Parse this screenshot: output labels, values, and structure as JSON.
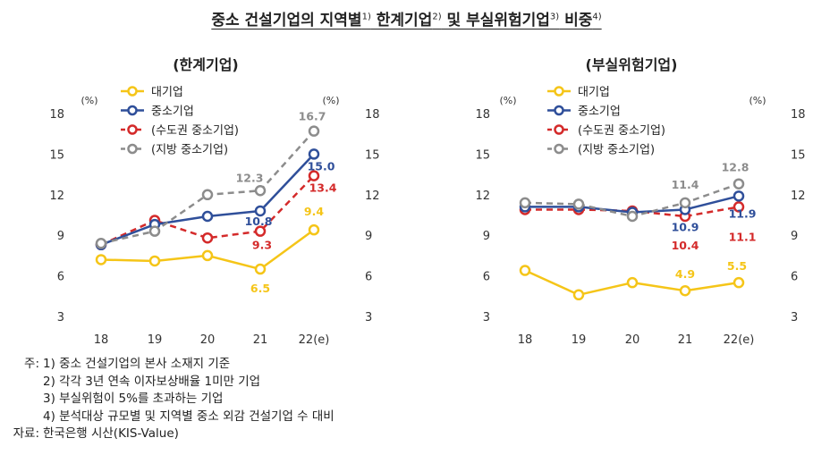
{
  "title": {
    "parts": [
      {
        "text": "중소 건설기업의 지역별",
        "sup": "1)"
      },
      {
        "text": " 한계기업",
        "sup": "2)"
      },
      {
        "text": " 및 부실위험기업",
        "sup": "3)"
      },
      {
        "text": " 비중",
        "sup": "4)"
      }
    ]
  },
  "chart_data": [
    {
      "type": "line",
      "title": "(한계기업)",
      "categories": [
        "18",
        "19",
        "20",
        "21",
        "22(e)"
      ],
      "y_unit_left": "(%)",
      "y_unit_right": "(%)",
      "ylim": [
        3,
        18
      ],
      "yticks": [
        3,
        6,
        9,
        12,
        15,
        18
      ],
      "legend_position": "top-left",
      "grid": false,
      "series": [
        {
          "name": "대기업",
          "color": "#F5C518",
          "dash": false,
          "values": [
            7.2,
            7.1,
            7.5,
            6.5,
            9.4
          ],
          "labels": {
            "3": "6.5",
            "4": "9.4"
          }
        },
        {
          "name": "중소기업",
          "color": "#2F4F9A",
          "dash": false,
          "values": [
            8.3,
            9.8,
            10.4,
            10.8,
            15.0
          ],
          "labels": {
            "3": "10.8",
            "4": "15.0"
          }
        },
        {
          "name": "(수도권 중소기업)",
          "color": "#D42A2A",
          "dash": true,
          "values": [
            8.3,
            10.1,
            8.8,
            9.3,
            13.4
          ],
          "labels": {
            "3": "9.3",
            "4": "13.4"
          }
        },
        {
          "name": "(지방 중소기업)",
          "color": "#8C8C8C",
          "dash": true,
          "values": [
            8.4,
            9.3,
            12.0,
            12.3,
            16.7
          ],
          "labels": {
            "3": "12.3",
            "4": "16.7"
          }
        }
      ]
    },
    {
      "type": "line",
      "title": "(부실위험기업)",
      "categories": [
        "18",
        "19",
        "20",
        "21",
        "22(e)"
      ],
      "y_unit_left": "(%)",
      "y_unit_right": "(%)",
      "ylim": [
        3,
        18
      ],
      "yticks": [
        3,
        6,
        9,
        12,
        15,
        18
      ],
      "legend_position": "top-left",
      "grid": false,
      "series": [
        {
          "name": "대기업",
          "color": "#F5C518",
          "dash": false,
          "values": [
            6.4,
            4.6,
            5.5,
            4.9,
            5.5
          ],
          "labels": {
            "3": "4.9",
            "4": "5.5"
          }
        },
        {
          "name": "중소기업",
          "color": "#2F4F9A",
          "dash": false,
          "values": [
            11.1,
            11.1,
            10.7,
            10.9,
            11.9
          ],
          "labels": {
            "3": "10.9",
            "4": "11.9"
          }
        },
        {
          "name": "(수도권 중소기업)",
          "color": "#D42A2A",
          "dash": true,
          "values": [
            10.9,
            10.9,
            10.8,
            10.4,
            11.1
          ],
          "labels": {
            "3": "10.4",
            "4": "11.1"
          }
        },
        {
          "name": "(지방 중소기업)",
          "color": "#8C8C8C",
          "dash": true,
          "values": [
            11.4,
            11.3,
            10.4,
            11.4,
            12.8
          ],
          "labels": {
            "3": "11.4",
            "4": "12.8"
          }
        }
      ]
    }
  ],
  "notes": [
    {
      "label": "주:",
      "text": "1) 중소 건설기업의 본사 소재지 기준"
    },
    {
      "label": "",
      "text": "2) 각각 3년 연속 이자보상배율 1미만 기업"
    },
    {
      "label": "",
      "text": "3) 부실위험이 5%를 초과하는 기업"
    },
    {
      "label": "",
      "text": "4) 분석대상 규모별 및 지역별 중소 외감 건설기업 수 대비"
    },
    {
      "label": "자료:",
      "text": "한국은행 시산(KIS-Value)"
    }
  ]
}
